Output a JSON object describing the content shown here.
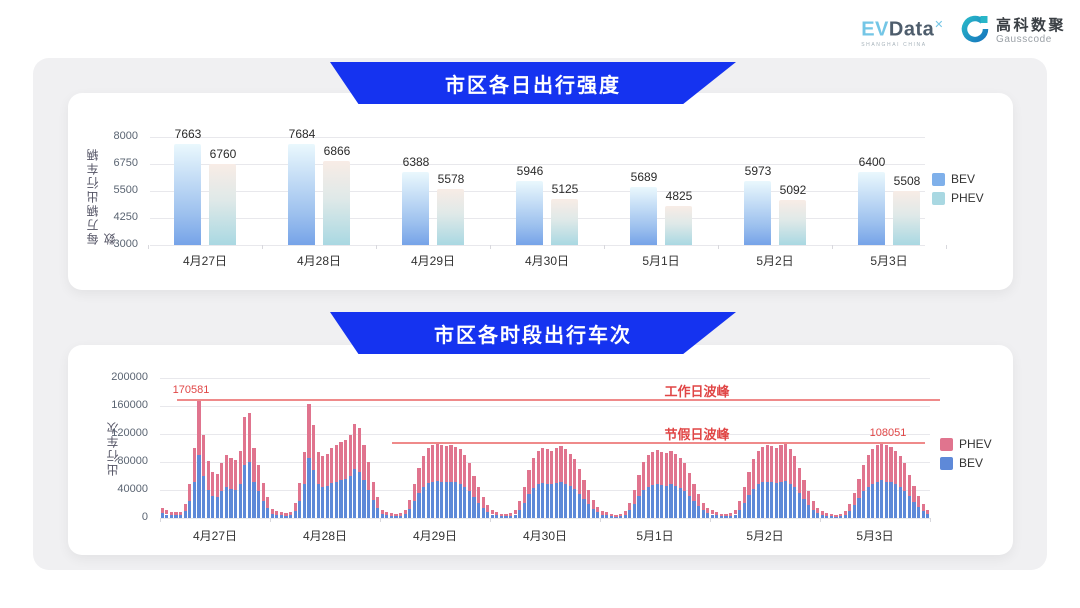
{
  "header": {
    "evdata_logo": {
      "ev": "EV",
      "data": "Data",
      "sup": "✕",
      "subtext": "SHANGHAI CHINA"
    },
    "gausscode_logo": {
      "cn": "高科数聚",
      "en": "Gausscode"
    }
  },
  "colors": {
    "banner_blue": "#1533f0",
    "bev_gradient_top": "#eaf8fd",
    "bev_gradient_bottom": "#76a3e8",
    "phev_gradient_top": "#f8ece6",
    "phev_gradient_bottom": "#a9d8e2",
    "phev_pink": "#e0748e",
    "bev_blue": "#5e89d8",
    "annotation_red": "#e04646",
    "annotation_line_red": "#ef8a8a",
    "panel_gray": "#f0f0f2"
  },
  "chart_data": [
    {
      "type": "bar",
      "title": "市区各日出行强度",
      "ylabel": "每万辆出行车辆数",
      "ylim": [
        3000,
        8000
      ],
      "yticks": [
        8000,
        6750,
        5500,
        4250,
        3000
      ],
      "grid": true,
      "legend_position": "right",
      "categories": [
        "4月27日",
        "4月28日",
        "4月29日",
        "4月30日",
        "5月1日",
        "5月2日",
        "5月3日"
      ],
      "series": [
        {
          "name": "BEV",
          "values": [
            7663,
            7684,
            6388,
            5946,
            5689,
            5973,
            6400
          ]
        },
        {
          "name": "PHEV",
          "values": [
            6760,
            6866,
            5578,
            5125,
            4825,
            5092,
            5508
          ]
        }
      ],
      "legend": [
        "BEV",
        "PHEV"
      ]
    },
    {
      "type": "stacked-bar",
      "title": "市区各时段出行车次",
      "ylabel": "出行车次",
      "ylim": [
        0,
        200000
      ],
      "yticks": [
        200000,
        160000,
        120000,
        80000,
        40000,
        0
      ],
      "grid": true,
      "legend_position": "right",
      "x_unit": "hour (0-23) per day",
      "categories": [
        "4月27日",
        "4月28日",
        "4月29日",
        "4月30日",
        "5月1日",
        "5月2日",
        "5月3日"
      ],
      "days": [
        {
          "date": "4月27日",
          "bev": [
            7000,
            5000,
            4000,
            4000,
            4000,
            10000,
            24000,
            52000,
            90000,
            60000,
            40000,
            32000,
            30000,
            38000,
            44000,
            42000,
            40000,
            48000,
            76000,
            80000,
            52000,
            38000,
            24000,
            14000
          ],
          "phev": [
            7000,
            6000,
            5000,
            4000,
            5000,
            10000,
            24000,
            48000,
            80581,
            58000,
            42000,
            34000,
            33000,
            40000,
            46000,
            44000,
            43000,
            48000,
            69000,
            70000,
            48000,
            38000,
            26000,
            16000
          ]
        },
        {
          "date": "4月28日",
          "bev": [
            6000,
            5000,
            4000,
            3000,
            4000,
            10000,
            25000,
            48000,
            86000,
            68000,
            48000,
            44000,
            46000,
            50000,
            52000,
            54000,
            56000,
            60000,
            70000,
            66000,
            54000,
            40000,
            26000,
            14000
          ],
          "phev": [
            7000,
            5000,
            4000,
            4000,
            5000,
            11000,
            25000,
            47000,
            77000,
            65000,
            47000,
            44000,
            46000,
            50000,
            53000,
            54000,
            56000,
            58000,
            65000,
            62000,
            50000,
            40000,
            26000,
            16000
          ]
        },
        {
          "date": "4月29日",
          "bev": [
            6000,
            4000,
            3000,
            3000,
            3000,
            6000,
            13000,
            24000,
            36000,
            44000,
            50000,
            52000,
            53000,
            52000,
            51000,
            52000,
            51000,
            49000,
            45000,
            39000,
            30000,
            22000,
            15000,
            9000
          ],
          "phev": [
            6000,
            5000,
            4000,
            3000,
            4000,
            6000,
            13000,
            24000,
            36000,
            44000,
            50000,
            52000,
            53000,
            52000,
            52000,
            53000,
            51000,
            49000,
            45000,
            39000,
            30000,
            22000,
            15000,
            9000
          ]
        },
        {
          "date": "4月30日",
          "bev": [
            5000,
            4000,
            3000,
            3000,
            3000,
            5000,
            12000,
            22000,
            34000,
            43000,
            48000,
            50000,
            49000,
            48000,
            50000,
            51000,
            49000,
            46000,
            42000,
            35000,
            27000,
            20000,
            13000,
            8000
          ],
          "phev": [
            6000,
            4000,
            3000,
            3000,
            4000,
            6000,
            12000,
            22000,
            34000,
            43000,
            48000,
            50000,
            49000,
            48000,
            50000,
            52000,
            49000,
            46000,
            42000,
            35000,
            27000,
            20000,
            13000,
            8000
          ]
        },
        {
          "date": "5月1日",
          "bev": [
            5000,
            4000,
            3000,
            2000,
            3000,
            5000,
            11000,
            20000,
            31000,
            40000,
            45000,
            47000,
            48000,
            47000,
            46000,
            48000,
            46000,
            43000,
            39000,
            32000,
            24000,
            17000,
            11000,
            7000
          ],
          "phev": [
            5000,
            4000,
            3000,
            3000,
            3000,
            5000,
            11000,
            20000,
            31000,
            40000,
            45000,
            48000,
            49000,
            48000,
            47000,
            48000,
            46000,
            43000,
            39000,
            32000,
            24000,
            17000,
            11000,
            7000
          ]
        },
        {
          "date": "5月2日",
          "bev": [
            5000,
            4000,
            3000,
            3000,
            3000,
            5000,
            12000,
            22000,
            33000,
            42000,
            48000,
            51000,
            52000,
            51000,
            50000,
            52000,
            53000,
            49000,
            44000,
            36000,
            27000,
            19000,
            12000,
            7000
          ],
          "phev": [
            6000,
            4000,
            3000,
            3000,
            4000,
            6000,
            12000,
            22000,
            33000,
            42000,
            48000,
            51000,
            53000,
            52000,
            50000,
            52000,
            53000,
            49000,
            44000,
            36000,
            27000,
            19000,
            12000,
            8000
          ]
        },
        {
          "date": "5月3日",
          "bev": [
            5000,
            3000,
            3000,
            2000,
            3000,
            5000,
            10000,
            18000,
            28000,
            38000,
            45000,
            49000,
            52000,
            54000,
            52000,
            51000,
            48000,
            44000,
            39000,
            31000,
            23000,
            16000,
            10000,
            6000
          ],
          "phev": [
            5000,
            4000,
            3000,
            3000,
            3000,
            5000,
            10000,
            18000,
            28000,
            38000,
            45000,
            49000,
            52000,
            54051,
            53000,
            51000,
            48000,
            44000,
            39000,
            31000,
            23000,
            16000,
            10000,
            6000
          ]
        }
      ],
      "annotations": [
        {
          "name": "workday-peak",
          "label": "工作日波峰",
          "value": 170581,
          "value_label": "170581"
        },
        {
          "name": "holiday-peak",
          "label": "节假日波峰",
          "value": 108051,
          "value_label": "108051"
        }
      ],
      "legend": [
        "PHEV",
        "BEV"
      ]
    }
  ]
}
